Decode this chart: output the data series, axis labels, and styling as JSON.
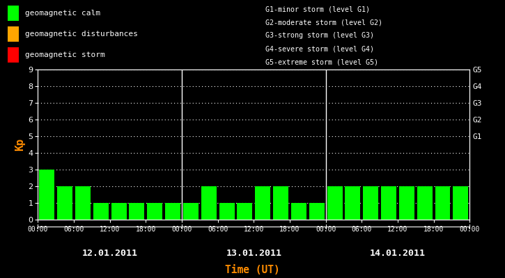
{
  "background_color": "#000000",
  "plot_bg_color": "#000000",
  "bar_color": "#00ff00",
  "text_color": "#ffffff",
  "ylabel_color": "#ff8c00",
  "xlabel_color": "#ff8c00",
  "days": [
    "12.01.2011",
    "13.01.2011",
    "14.01.2011"
  ],
  "kp_day1": [
    3,
    2,
    2,
    1,
    1,
    1,
    1,
    1
  ],
  "kp_day2": [
    1,
    2,
    1,
    1,
    2,
    2,
    1,
    1
  ],
  "kp_day3": [
    2,
    2,
    2,
    2,
    2,
    2,
    2,
    2
  ],
  "legend_items": [
    {
      "label": "geomagnetic calm",
      "color": "#00ff00"
    },
    {
      "label": "geomagnetic disturbances",
      "color": "#ffa500"
    },
    {
      "label": "geomagnetic storm",
      "color": "#ff0000"
    }
  ],
  "g_texts": [
    "G1-minor storm (level G1)",
    "G2-moderate storm (level G2)",
    "G3-strong storm (level G3)",
    "G4-severe storm (level G4)",
    "G5-extreme storm (level G5)"
  ],
  "right_labels": [
    "G1",
    "G2",
    "G3",
    "G4",
    "G5"
  ],
  "right_yticks": [
    5,
    6,
    7,
    8,
    9
  ],
  "ylim": [
    0,
    9
  ],
  "yticks": [
    0,
    1,
    2,
    3,
    4,
    5,
    6,
    7,
    8,
    9
  ],
  "ylabel": "Kp",
  "xlabel": "Time (UT)",
  "bar_width": 0.85
}
